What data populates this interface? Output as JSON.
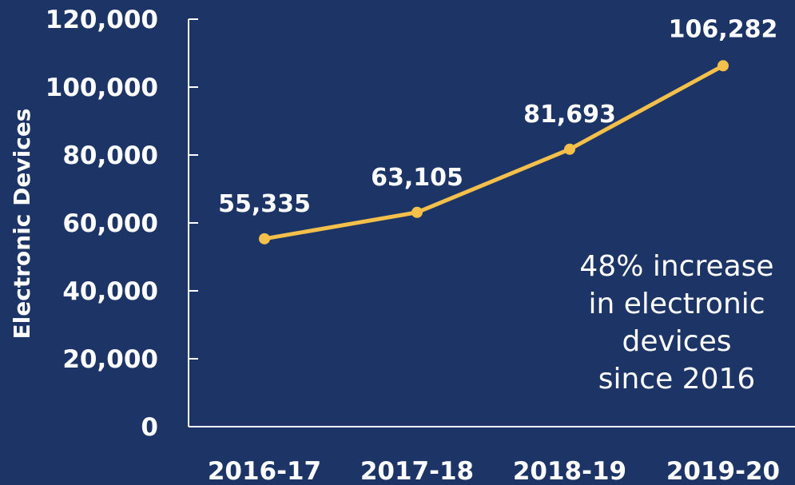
{
  "chart_data": {
    "type": "line",
    "categories": [
      "2016-17",
      "2017-18",
      "2018-19",
      "2019-20"
    ],
    "series": [
      {
        "values": [
          55335,
          63105,
          81693,
          106282
        ],
        "color": "#f4c04a"
      }
    ],
    "data_labels": [
      "55,335",
      "63,105",
      "81,693",
      "106,282"
    ],
    "ylabel": "Electronic Devices",
    "xlabel": "",
    "ylim": [
      0,
      120000
    ],
    "yticks": [
      0,
      20000,
      40000,
      60000,
      80000,
      100000,
      120000
    ],
    "ytick_labels": [
      "0",
      "20,000",
      "40,000",
      "60,000",
      "80,000",
      "100,000",
      "120,000"
    ],
    "annotation": [
      "48% increase",
      "in electronic",
      "devices",
      "since 2016"
    ],
    "grid": false,
    "legend": "none",
    "colors": {
      "background": "#1d3566",
      "axis": "#ffffff",
      "text": "#ffffff",
      "line": "#f4c04a"
    }
  }
}
